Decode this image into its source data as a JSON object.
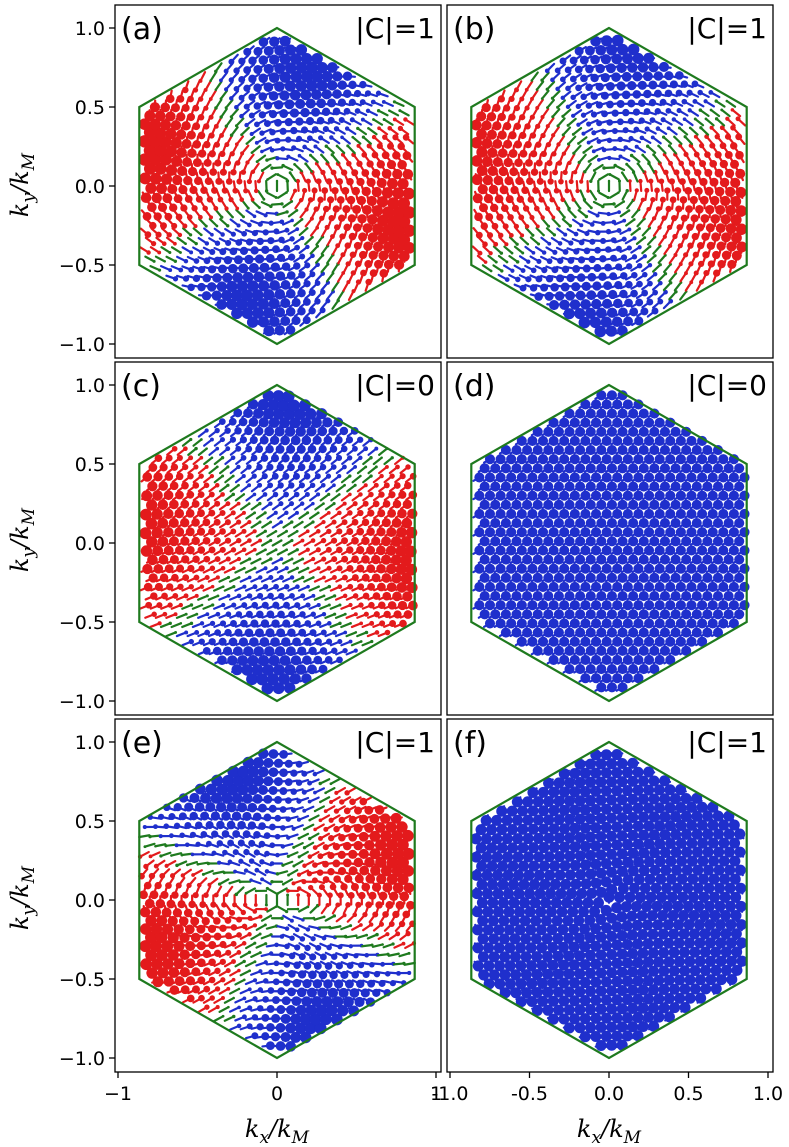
{
  "chart_data": [
    {
      "type": "scatter",
      "panel": "(a)",
      "annotation": "|C|=1",
      "pattern": "vortex",
      "xlim": [
        -1,
        1
      ],
      "ylim": [
        -1.05,
        1.05
      ],
      "colors": {
        "up": "#e31a1c",
        "down": "#1f2fcc",
        "edge": "#1e7a1e"
      }
    },
    {
      "type": "scatter",
      "panel": "(b)",
      "annotation": "|C|=1",
      "pattern": "vortex-soft",
      "xlim": [
        -1,
        1
      ],
      "ylim": [
        -1.05,
        1.05
      ],
      "colors": {
        "up": "#e31a1c",
        "down": "#1f2fcc",
        "edge": "#1e7a1e"
      }
    },
    {
      "type": "scatter",
      "panel": "(c)",
      "annotation": "|C|=0",
      "pattern": "stripes",
      "xlim": [
        -1,
        1
      ],
      "ylim": [
        -1.05,
        1.05
      ],
      "colors": {
        "up": "#e31a1c",
        "down": "#1f2fcc",
        "edge": "#1e7a1e"
      }
    },
    {
      "type": "scatter",
      "panel": "(d)",
      "annotation": "|C|=0",
      "pattern": "uniform",
      "xlim": [
        -1,
        1
      ],
      "ylim": [
        -1.05,
        1.05
      ],
      "colors": {
        "up": "#e31a1c",
        "down": "#1f2fcc",
        "edge": "#1e7a1e"
      }
    },
    {
      "type": "scatter",
      "panel": "(e)",
      "annotation": "|C|=1",
      "pattern": "double-vortex",
      "xlim": [
        -1,
        1
      ],
      "ylim": [
        -1.05,
        1.05
      ],
      "colors": {
        "up": "#e31a1c",
        "down": "#1f2fcc",
        "edge": "#1e7a1e"
      }
    },
    {
      "type": "scatter",
      "panel": "(f)",
      "annotation": "|C|=1",
      "pattern": "blue-vortex",
      "xlim": [
        -1,
        1
      ],
      "ylim": [
        -1.05,
        1.05
      ],
      "colors": {
        "up": "#e31a1c",
        "down": "#1f2fcc",
        "edge": "#1e7a1e"
      }
    }
  ],
  "axes": {
    "ylabel_main": "k",
    "ylabel_sub": "y",
    "ylabel_rest": "/k",
    "ylabel_sub2": "M",
    "xlabel_main": "k",
    "xlabel_sub": "x",
    "xlabel_rest": "/k",
    "xlabel_sub2": "M",
    "yticks": [
      {
        "v": 1.0,
        "label": "1.0"
      },
      {
        "v": 0.5,
        "label": "0.5"
      },
      {
        "v": 0.0,
        "label": "0.0"
      },
      {
        "v": -0.5,
        "label": "−0.5"
      },
      {
        "v": -1.0,
        "label": "−1.0"
      }
    ],
    "xticks_left": [
      {
        "v": -1,
        "label": "−1"
      },
      {
        "v": 0,
        "label": "0"
      },
      {
        "v": 1,
        "label": "1"
      }
    ],
    "xticks_right": [
      {
        "v": -1.0,
        "label": "-1.0"
      },
      {
        "v": -0.5,
        "label": "-0.5"
      },
      {
        "v": 0.0,
        "label": "0.0"
      },
      {
        "v": 0.5,
        "label": "0.5"
      },
      {
        "v": 1.0,
        "label": "1.0"
      }
    ]
  }
}
